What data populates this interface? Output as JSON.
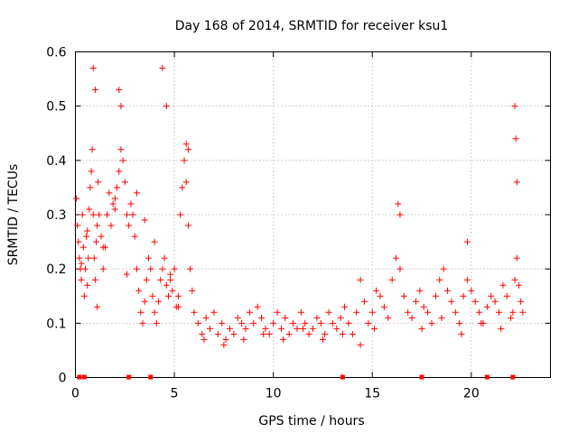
{
  "chart_data": {
    "type": "scatter",
    "title": "Day 168 of 2014, SRMTID for receiver ksu1",
    "xlabel": "GPS time / hours",
    "ylabel": "SRMTID / TECUs",
    "xlim": [
      0,
      24
    ],
    "ylim": [
      0,
      0.6
    ],
    "x_ticks": [
      0,
      5,
      10,
      15,
      20
    ],
    "x_tick_labels": [
      "0",
      "5",
      "10",
      "15",
      "20"
    ],
    "y_ticks": [
      0,
      0.1,
      0.2,
      0.3,
      0.4,
      0.5,
      0.6
    ],
    "y_tick_labels": [
      "0",
      "0.1",
      "0.2",
      "0.3",
      "0.4",
      "0.5",
      "0.6"
    ],
    "grid": true,
    "marker": "plus",
    "color": "#ff0000",
    "series": [
      {
        "name": "SRMTID",
        "x": [
          0.05,
          0.1,
          0.15,
          0.2,
          0.25,
          0.3,
          0.35,
          0.4,
          0.45,
          0.5,
          0.55,
          0.6,
          0.65,
          0.7,
          0.75,
          0.8,
          0.85,
          0.9,
          0.95,
          1.0,
          1.05,
          1.1,
          1.15,
          1.2,
          1.3,
          1.4,
          1.5,
          1.6,
          1.7,
          1.8,
          1.9,
          2.0,
          2.1,
          2.2,
          2.3,
          2.4,
          2.5,
          2.6,
          2.7,
          2.8,
          2.9,
          3.0,
          3.1,
          3.2,
          3.3,
          3.4,
          3.5,
          3.6,
          3.7,
          3.8,
          3.9,
          4.0,
          4.1,
          4.2,
          4.3,
          4.4,
          4.5,
          4.6,
          4.7,
          4.8,
          4.9,
          5.0,
          5.1,
          5.2,
          5.3,
          5.4,
          5.5,
          5.6,
          5.7,
          5.8,
          5.9,
          6.0,
          6.2,
          6.4,
          6.6,
          6.8,
          7.0,
          7.2,
          7.4,
          7.6,
          7.8,
          8.0,
          8.2,
          8.4,
          8.6,
          8.8,
          9.0,
          9.2,
          9.4,
          9.6,
          9.8,
          10.0,
          10.2,
          10.4,
          10.6,
          10.8,
          11.0,
          11.2,
          11.4,
          11.6,
          11.8,
          12.0,
          12.2,
          12.4,
          12.6,
          12.8,
          13.0,
          13.2,
          13.4,
          13.6,
          13.8,
          14.0,
          14.2,
          14.4,
          14.6,
          14.8,
          15.0,
          15.2,
          15.4,
          15.6,
          15.8,
          16.0,
          16.2,
          16.4,
          16.6,
          16.8,
          17.0,
          17.2,
          17.4,
          17.6,
          17.8,
          18.0,
          18.2,
          18.4,
          18.6,
          18.8,
          19.0,
          19.2,
          19.4,
          19.6,
          19.8,
          20.0,
          20.2,
          20.4,
          20.6,
          20.8,
          21.0,
          21.2,
          21.4,
          21.6,
          21.8,
          22.0,
          22.1,
          22.2,
          22.3,
          22.4,
          22.5,
          22.6,
          0.9,
          1.0,
          2.2,
          2.3,
          4.4,
          4.6,
          5.6,
          5.7,
          16.3,
          16.4,
          19.8,
          22.2,
          22.25,
          22.3,
          0.3,
          0.6,
          1.1,
          1.4,
          2.0,
          2.6,
          3.1,
          3.5,
          4.0,
          4.8,
          5.2,
          6.5,
          7.5,
          8.5,
          9.5,
          10.5,
          11.5,
          12.5,
          13.5,
          14.4,
          15.1,
          17.5,
          18.5,
          19.5,
          20.5,
          21.5
        ],
        "y": [
          0.33,
          0.28,
          0.25,
          0.22,
          0.2,
          0.18,
          0.3,
          0.24,
          0.15,
          0.2,
          0.26,
          0.27,
          0.22,
          0.31,
          0.35,
          0.38,
          0.42,
          0.3,
          0.22,
          0.18,
          0.25,
          0.28,
          0.36,
          0.3,
          0.26,
          0.2,
          0.24,
          0.3,
          0.34,
          0.28,
          0.32,
          0.33,
          0.35,
          0.38,
          0.42,
          0.4,
          0.36,
          0.3,
          0.28,
          0.32,
          0.3,
          0.26,
          0.2,
          0.16,
          0.12,
          0.1,
          0.14,
          0.18,
          0.22,
          0.2,
          0.15,
          0.12,
          0.1,
          0.14,
          0.18,
          0.2,
          0.22,
          0.17,
          0.15,
          0.18,
          0.16,
          0.2,
          0.13,
          0.15,
          0.3,
          0.35,
          0.4,
          0.36,
          0.28,
          0.2,
          0.16,
          0.12,
          0.1,
          0.08,
          0.11,
          0.09,
          0.12,
          0.08,
          0.1,
          0.07,
          0.09,
          0.08,
          0.11,
          0.1,
          0.09,
          0.12,
          0.1,
          0.13,
          0.11,
          0.09,
          0.08,
          0.1,
          0.12,
          0.09,
          0.11,
          0.08,
          0.1,
          0.09,
          0.12,
          0.1,
          0.08,
          0.09,
          0.11,
          0.1,
          0.08,
          0.12,
          0.1,
          0.09,
          0.11,
          0.13,
          0.1,
          0.08,
          0.12,
          0.18,
          0.14,
          0.1,
          0.12,
          0.16,
          0.15,
          0.13,
          0.11,
          0.18,
          0.22,
          0.2,
          0.15,
          0.12,
          0.11,
          0.14,
          0.16,
          0.13,
          0.12,
          0.1,
          0.15,
          0.18,
          0.2,
          0.16,
          0.14,
          0.12,
          0.1,
          0.15,
          0.18,
          0.16,
          0.14,
          0.12,
          0.1,
          0.13,
          0.15,
          0.14,
          0.12,
          0.17,
          0.15,
          0.11,
          0.12,
          0.18,
          0.22,
          0.17,
          0.14,
          0.12,
          0.57,
          0.53,
          0.53,
          0.5,
          0.57,
          0.5,
          0.43,
          0.42,
          0.32,
          0.3,
          0.25,
          0.5,
          0.44,
          0.36,
          0.21,
          0.17,
          0.13,
          0.24,
          0.31,
          0.19,
          0.34,
          0.29,
          0.25,
          0.19,
          0.13,
          0.07,
          0.06,
          0.07,
          0.08,
          0.07,
          0.09,
          0.07,
          0.08,
          0.06,
          0.09,
          0.09,
          0.11,
          0.08,
          0.1,
          0.09
        ],
        "rug_x": [
          0.2,
          0.45,
          2.7,
          3.8,
          13.5,
          17.5,
          20.8,
          22.1
        ]
      }
    ]
  }
}
